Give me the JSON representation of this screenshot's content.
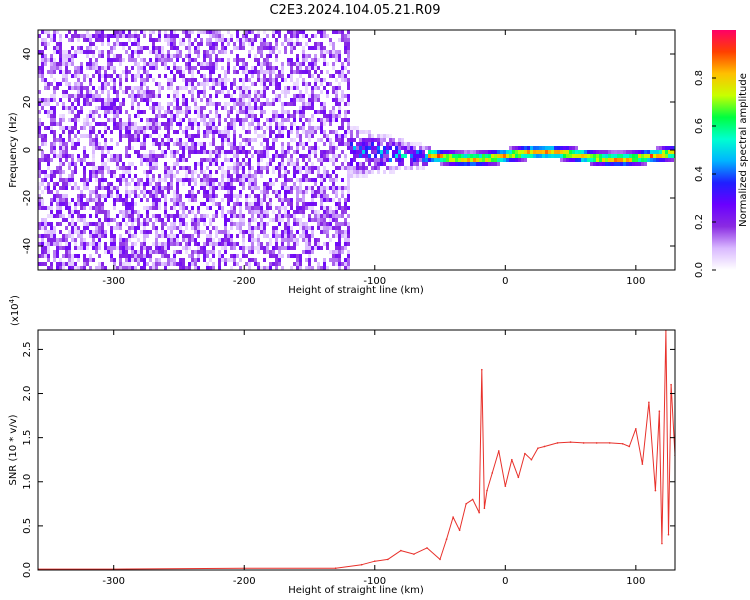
{
  "title": "C2E3.2024.104.05.21.R09",
  "colors": {
    "snr_line": "#e8312b",
    "background": "#ffffff",
    "axis": "#000000",
    "colormap": [
      "#ffffff",
      "#d9b8ff",
      "#8a2be2",
      "#6a00ff",
      "#1f1fff",
      "#00b4ff",
      "#00ffd0",
      "#00ff40",
      "#c8ff00",
      "#ffc000",
      "#ff4000",
      "#ff0066"
    ]
  },
  "chart_data": [
    {
      "id": "spectrogram",
      "type": "heatmap",
      "xlabel": "Height of straight line (km)",
      "ylabel": "Frequency (Hz)",
      "xlim": [
        -358,
        130
      ],
      "ylim": [
        -50,
        50
      ],
      "xticks": [
        -300,
        -200,
        -100,
        0,
        100
      ],
      "xtick_labels": [
        "-300",
        "-200",
        "-100",
        "0",
        "100"
      ],
      "yticks": [
        -40,
        -20,
        0,
        20,
        40
      ],
      "ytick_labels": [
        "-40",
        "-20",
        "0",
        "20",
        "40"
      ],
      "colorbar": {
        "label": "Normalized spectral amplitude",
        "range": [
          0,
          1
        ],
        "ticks": [
          0.0,
          0.2,
          0.4,
          0.6,
          0.8
        ],
        "tick_labels": [
          "0.0",
          "0.2",
          "0.4",
          "0.6",
          "0.8"
        ]
      },
      "regions": [
        {
          "x_range": [
            -358,
            -120
          ],
          "freq_range": [
            -50,
            50
          ],
          "amplitude": 0.1,
          "character": "broadband noise"
        },
        {
          "x_range": [
            -120,
            -60
          ],
          "freq_range": [
            -12,
            12
          ],
          "amplitude": 0.35,
          "character": "converging band"
        },
        {
          "x_range": [
            -60,
            130
          ],
          "freq_range": [
            -3,
            3
          ],
          "amplitude": 0.9,
          "character": "narrow carrier near 0 Hz"
        }
      ]
    },
    {
      "id": "snr",
      "type": "line",
      "xlabel": "Height of straight line (km)",
      "ylabel": "SNR (10 * v/v)",
      "y_multiplier": "(x10",
      "y_multiplier_exp": "4",
      "y_multiplier_close": ")",
      "xlim": [
        -358,
        130
      ],
      "ylim": [
        0,
        2.72
      ],
      "xticks": [
        -300,
        -200,
        -100,
        0,
        100
      ],
      "xtick_labels": [
        "-300",
        "-200",
        "-100",
        "0",
        "100"
      ],
      "yticks": [
        0.0,
        0.5,
        1.0,
        1.5,
        2.0,
        2.5
      ],
      "ytick_labels": [
        "0.0",
        "0.5",
        "1.0",
        "1.5",
        "2.0",
        "2.5"
      ],
      "x": [
        -358,
        -300,
        -200,
        -130,
        -110,
        -100,
        -90,
        -80,
        -70,
        -60,
        -50,
        -45,
        -40,
        -35,
        -30,
        -25,
        -20,
        -18,
        -16,
        -14,
        -10,
        -5,
        0,
        5,
        10,
        15,
        20,
        25,
        30,
        40,
        50,
        60,
        70,
        80,
        90,
        95,
        100,
        105,
        110,
        115,
        118,
        120,
        123,
        125,
        127,
        130
      ],
      "y": [
        0.01,
        0.01,
        0.02,
        0.02,
        0.06,
        0.1,
        0.12,
        0.22,
        0.18,
        0.25,
        0.12,
        0.35,
        0.6,
        0.45,
        0.75,
        0.8,
        0.65,
        2.27,
        0.7,
        0.9,
        1.1,
        1.35,
        0.95,
        1.25,
        1.05,
        1.32,
        1.25,
        1.38,
        1.4,
        1.44,
        1.45,
        1.44,
        1.44,
        1.44,
        1.43,
        1.4,
        1.6,
        1.2,
        1.9,
        0.9,
        1.8,
        0.3,
        2.72,
        0.4,
        2.1,
        1.3
      ],
      "series": [
        {
          "name": "",
          "color": "#e8312b"
        }
      ]
    }
  ]
}
